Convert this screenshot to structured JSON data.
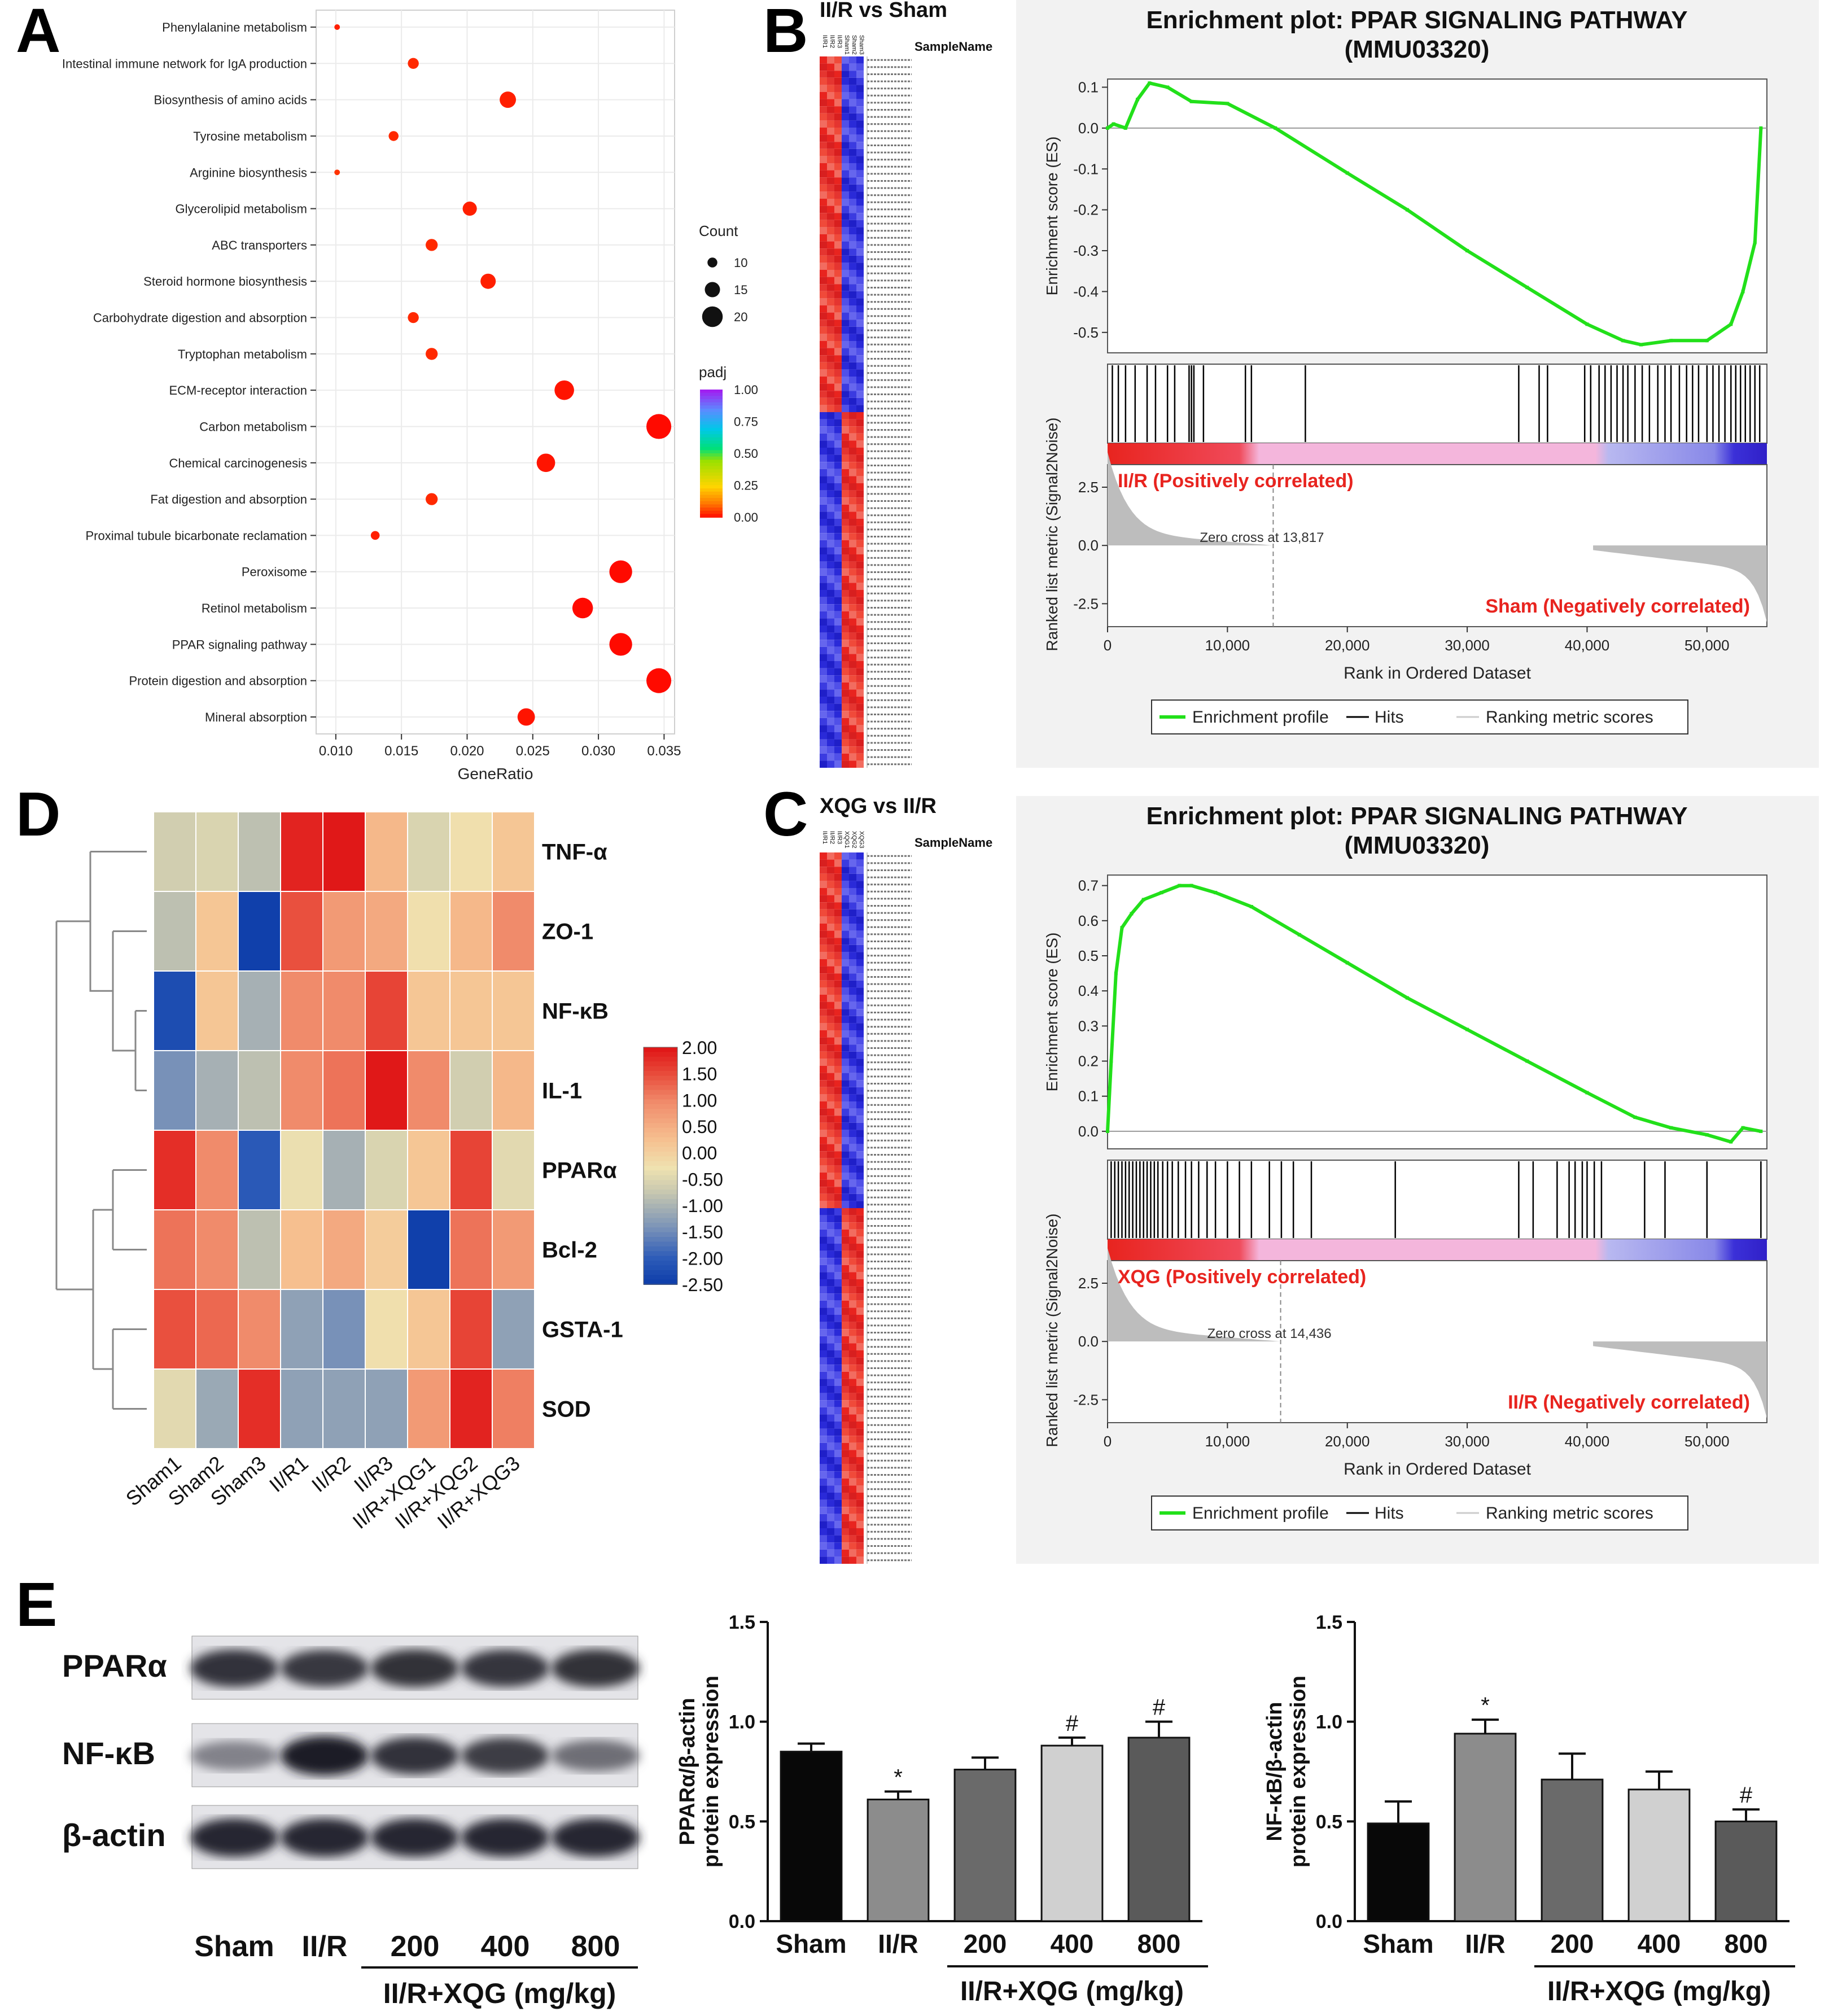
{
  "panels": {
    "A": "A",
    "B": "B",
    "C": "C",
    "D": "D",
    "E": "E"
  },
  "colors": {
    "es_line": "#22e01a",
    "hit": "#000000",
    "metric_fill": "#bdbdbd",
    "pos_red": "#e8241f",
    "neg_blue": "#3b30d8",
    "pink": "#f4b6dc",
    "label_red": "#e8241f",
    "dot_orange": "#f05a14",
    "dot_red": "#ea2a1e"
  },
  "chart_data": [
    {
      "id": "A",
      "type": "scatter",
      "title": "",
      "xlabel": "GeneRatio",
      "ylabel": "",
      "xlim": [
        0.0085,
        0.0358
      ],
      "xticks": [
        "0.010",
        "0.015",
        "0.020",
        "0.025",
        "0.030",
        "0.035"
      ],
      "xtick_values": [
        0.01,
        0.015,
        0.02,
        0.025,
        0.03,
        0.035
      ],
      "grid": true,
      "categories": [
        "Phenylalanine metabolism",
        "Intestinal immune network for IgA production",
        "Biosynthesis of amino acids",
        "Tyrosine metabolism",
        "Arginine biosynthesis",
        "Glycerolipid metabolism",
        "ABC transporters",
        "Steroid hormone biosynthesis",
        "Carbohydrate digestion and absorption",
        "Tryptophan metabolism",
        "ECM-receptor interaction",
        "Carbon metabolism",
        "Chemical carcinogenesis",
        "Fat digestion and absorption",
        "Proximal tubule bicarbonate reclamation",
        "Peroxisome",
        "Retinol metabolism",
        "PPAR signaling pathway",
        "Protein digestion and absorption",
        "Mineral absorption"
      ],
      "gene_ratio": [
        0.0101,
        0.0159,
        0.0231,
        0.0144,
        0.0101,
        0.0202,
        0.0173,
        0.0216,
        0.0159,
        0.0173,
        0.0274,
        0.0346,
        0.026,
        0.0173,
        0.013,
        0.0317,
        0.0288,
        0.0317,
        0.0346,
        0.0245
      ],
      "count": [
        6,
        11,
        16,
        10,
        6,
        14,
        12,
        15,
        11,
        12,
        19,
        24,
        18,
        12,
        9,
        22,
        20,
        22,
        24,
        17
      ],
      "padj": [
        0.03,
        0.04,
        0.03,
        0.04,
        0.05,
        0.03,
        0.04,
        0.03,
        0.04,
        0.04,
        0.02,
        0.01,
        0.02,
        0.04,
        0.03,
        0.01,
        0.01,
        0.01,
        0.01,
        0.02
      ],
      "legend_count_title": "Count",
      "legend_count_values": [
        "10",
        "15",
        "20"
      ],
      "legend_padj_title": "padj",
      "legend_padj_ticks": [
        "1.00",
        "0.75",
        "0.50",
        "0.25",
        "0.00"
      ]
    },
    {
      "id": "B",
      "type": "line",
      "heatmap_title": "II/R vs Sham",
      "heatmap_header": "SampleName",
      "heatmap_samples": [
        "II/R1",
        "II/R2",
        "II/R3",
        "Sham1",
        "Sham2",
        "Sham3"
      ],
      "title_line1": "Enrichment plot: PPAR SIGNALING PATHWAY",
      "title_line2": "(MMU03320)",
      "ylabel_es": "Enrichment score (ES)",
      "ylabel_metric": "Ranked list metric (Signal2Noise)",
      "xlabel": "Rank in Ordered Dataset",
      "xlim": [
        0,
        55000
      ],
      "xticks": [
        "0",
        "10,000",
        "20,000",
        "30,000",
        "40,000",
        "50,000"
      ],
      "xtick_values": [
        0,
        10000,
        20000,
        30000,
        40000,
        50000
      ],
      "es_ylim": [
        -0.55,
        0.12
      ],
      "es_yticks": [
        "0.1",
        "0.0",
        "-0.1",
        "-0.2",
        "-0.3",
        "-0.4",
        "-0.5"
      ],
      "es_ytick_values": [
        0.1,
        0.0,
        -0.1,
        -0.2,
        -0.3,
        -0.4,
        -0.5
      ],
      "metric_yticks": [
        "2.5",
        "0.0",
        "-2.5"
      ],
      "metric_ytick_values": [
        2.5,
        0.0,
        -2.5
      ],
      "es_x": [
        0,
        500,
        1500,
        2500,
        3500,
        5000,
        7000,
        10000,
        14000,
        20000,
        25000,
        30000,
        35000,
        40000,
        43000,
        44500,
        47000,
        50000,
        52000,
        53000,
        54000,
        54500
      ],
      "es_y": [
        0.0,
        0.01,
        0.0,
        0.07,
        0.11,
        0.1,
        0.065,
        0.06,
        0.0,
        -0.11,
        -0.2,
        -0.3,
        -0.39,
        -0.48,
        -0.52,
        -0.53,
        -0.52,
        -0.52,
        -0.48,
        -0.4,
        -0.28,
        0.0
      ],
      "hits": [
        400,
        900,
        1500,
        2300,
        3300,
        4000,
        5000,
        5600,
        6800,
        7000,
        7200,
        8000,
        11500,
        12000,
        16500,
        34300,
        36000,
        36700,
        39800,
        40300,
        41000,
        41500,
        42000,
        42500,
        43000,
        43400,
        44000,
        44600,
        45200,
        45900,
        46500,
        47000,
        47700,
        48300,
        48800,
        49300,
        50000,
        50500,
        51000,
        51500,
        52000,
        52400,
        52800,
        53200,
        53600,
        54000,
        54400
      ],
      "zero_cross": 13817,
      "zero_cross_label": "Zero cross at 13,817",
      "pos_label": "II/R (Positively correlated)",
      "neg_label": "Sham (Negatively correlated)",
      "legend": [
        "Enrichment profile",
        "Hits",
        "Ranking metric scores"
      ]
    },
    {
      "id": "C",
      "type": "line",
      "heatmap_title": "XQG vs II/R",
      "heatmap_header": "SampleName",
      "heatmap_samples": [
        "II/R1",
        "II/R2",
        "II/R3",
        "XQG1",
        "XQG2",
        "XQG3"
      ],
      "title_line1": "Enrichment plot: PPAR SIGNALING PATHWAY",
      "title_line2": "(MMU03320)",
      "ylabel_es": "Enrichment score (ES)",
      "ylabel_metric": "Ranked list metric (Signal2Noise)",
      "xlabel": "Rank in Ordered Dataset",
      "xlim": [
        0,
        55000
      ],
      "xticks": [
        "0",
        "10,000",
        "20,000",
        "30,000",
        "40,000",
        "50,000"
      ],
      "xtick_values": [
        0,
        10000,
        20000,
        30000,
        40000,
        50000
      ],
      "es_ylim": [
        -0.05,
        0.73
      ],
      "es_yticks": [
        "0.7",
        "0.6",
        "0.5",
        "0.4",
        "0.3",
        "0.2",
        "0.1",
        "0.0"
      ],
      "es_ytick_values": [
        0.7,
        0.6,
        0.5,
        0.4,
        0.3,
        0.2,
        0.1,
        0.0
      ],
      "metric_yticks": [
        "2.5",
        "0.0",
        "-2.5"
      ],
      "metric_ytick_values": [
        2.5,
        0.0,
        -2.5
      ],
      "es_x": [
        0,
        300,
        700,
        1200,
        2000,
        3000,
        4500,
        6000,
        7000,
        9000,
        12000,
        16000,
        20000,
        25000,
        30000,
        35000,
        40000,
        44000,
        47000,
        50000,
        52000,
        53000,
        54500
      ],
      "es_y": [
        0.0,
        0.2,
        0.45,
        0.58,
        0.62,
        0.66,
        0.68,
        0.7,
        0.7,
        0.68,
        0.64,
        0.56,
        0.48,
        0.38,
        0.29,
        0.2,
        0.11,
        0.04,
        0.01,
        -0.01,
        -0.03,
        0.01,
        0.0
      ],
      "hits": [
        300,
        600,
        900,
        1200,
        1500,
        1800,
        2100,
        2400,
        2700,
        3000,
        3300,
        3600,
        3900,
        4200,
        4600,
        5000,
        5400,
        5900,
        6500,
        7000,
        7600,
        8300,
        9000,
        10000,
        11000,
        12000,
        13500,
        14500,
        15500,
        17000,
        24000,
        34300,
        35500,
        37500,
        38500,
        39000,
        39600,
        40000,
        40600,
        41200,
        44800,
        46500,
        50000,
        54500
      ],
      "zero_cross": 14436,
      "zero_cross_label": "Zero cross at 14,436",
      "pos_label": "XQG (Positively correlated)",
      "neg_label": "II/R (Negatively correlated)",
      "legend": [
        "Enrichment profile",
        "Hits",
        "Ranking metric scores"
      ]
    },
    {
      "id": "D",
      "type": "heatmap",
      "rows": [
        "TNF-α",
        "ZO-1",
        "NF-κB",
        "IL-1",
        "PPARα",
        "Bcl-2",
        "GSTA-1",
        "SOD"
      ],
      "columns": [
        "Sham1",
        "Sham2",
        "Sham3",
        "II/R1",
        "II/R2",
        "II/R3",
        "II/R+XQG1",
        "II/R+XQG2",
        "II/R+XQG3"
      ],
      "values": [
        [
          -0.6,
          -0.5,
          -0.8,
          1.9,
          2.0,
          0.4,
          -0.5,
          -0.2,
          0.2
        ],
        [
          -0.8,
          0.2,
          -2.4,
          1.5,
          0.8,
          0.6,
          -0.2,
          0.4,
          1.0
        ],
        [
          -2.2,
          0.2,
          -1.0,
          1.0,
          1.0,
          1.6,
          0.2,
          0.2,
          0.2
        ],
        [
          -1.4,
          -1.0,
          -0.8,
          1.0,
          1.2,
          2.0,
          1.0,
          -0.6,
          0.4
        ],
        [
          1.8,
          1.0,
          -2.0,
          -0.3,
          -1.0,
          -0.5,
          0.2,
          1.6,
          -0.4
        ],
        [
          1.2,
          1.0,
          -0.8,
          0.3,
          0.6,
          0.1,
          -2.4,
          1.2,
          0.8
        ],
        [
          1.5,
          1.3,
          1.0,
          -1.2,
          -1.4,
          -0.2,
          0.2,
          1.6,
          -1.2
        ],
        [
          -0.4,
          -1.1,
          1.8,
          -1.2,
          -1.2,
          -1.2,
          0.8,
          1.9,
          1.1
        ]
      ],
      "scale_ticks": [
        "2.00",
        "1.50",
        "1.00",
        "0.50",
        "0.00",
        "-0.50",
        "-1.00",
        "-1.50",
        "-2.00",
        "-2.50"
      ],
      "scale_tick_values": [
        2.0,
        1.5,
        1.0,
        0.5,
        0.0,
        -0.5,
        -1.0,
        -1.5,
        -2.0,
        -2.5
      ],
      "vmin": -2.5,
      "vmax": 2.0
    },
    {
      "id": "E1",
      "type": "bar",
      "categories": [
        "Sham",
        "II/R",
        "200",
        "400",
        "800"
      ],
      "values": [
        0.85,
        0.61,
        0.76,
        0.88,
        0.92
      ],
      "errors": [
        0.04,
        0.04,
        0.06,
        0.04,
        0.08
      ],
      "marks": [
        "",
        "*",
        "",
        "#",
        "#"
      ],
      "ylabel_line1": "PPARα/β-actin",
      "ylabel_line2": "protein expression",
      "ylim": [
        0,
        1.5
      ],
      "yticks": [
        "0.0",
        "0.5",
        "1.0",
        "1.5"
      ],
      "ytick_values": [
        0,
        0.5,
        1.0,
        1.5
      ],
      "group_label": "II/R+XQG (mg/kg)",
      "bar_colors": [
        "#080808",
        "#8c8c8c",
        "#6a6a6a",
        "#d0d0d0",
        "#5a5a5a"
      ]
    },
    {
      "id": "E2",
      "type": "bar",
      "categories": [
        "Sham",
        "II/R",
        "200",
        "400",
        "800"
      ],
      "values": [
        0.49,
        0.94,
        0.71,
        0.66,
        0.5
      ],
      "errors": [
        0.11,
        0.07,
        0.13,
        0.09,
        0.06
      ],
      "marks": [
        "",
        "*",
        "",
        "",
        "#"
      ],
      "ylabel_line1": "NF-κB/β-actin",
      "ylabel_line2": "protein expression",
      "ylim": [
        0,
        1.5
      ],
      "yticks": [
        "0.0",
        "0.5",
        "1.0",
        "1.5"
      ],
      "ytick_values": [
        0,
        0.5,
        1.0,
        1.5
      ],
      "group_label": "II/R+XQG (mg/kg)",
      "bar_colors": [
        "#080808",
        "#8c8c8c",
        "#6a6a6a",
        "#d0d0d0",
        "#5a5a5a"
      ]
    }
  ],
  "western": {
    "bands": [
      "PPARα",
      "NF-κB",
      "β-actin"
    ],
    "lanes": [
      "Sham",
      "II/R",
      "200",
      "400",
      "800"
    ],
    "group_label": "II/R+XQG (mg/kg)",
    "intensity": [
      [
        0.85,
        0.82,
        0.86,
        0.84,
        0.86
      ],
      [
        0.45,
        0.95,
        0.85,
        0.8,
        0.55
      ],
      [
        0.9,
        0.9,
        0.9,
        0.9,
        0.9
      ]
    ]
  }
}
